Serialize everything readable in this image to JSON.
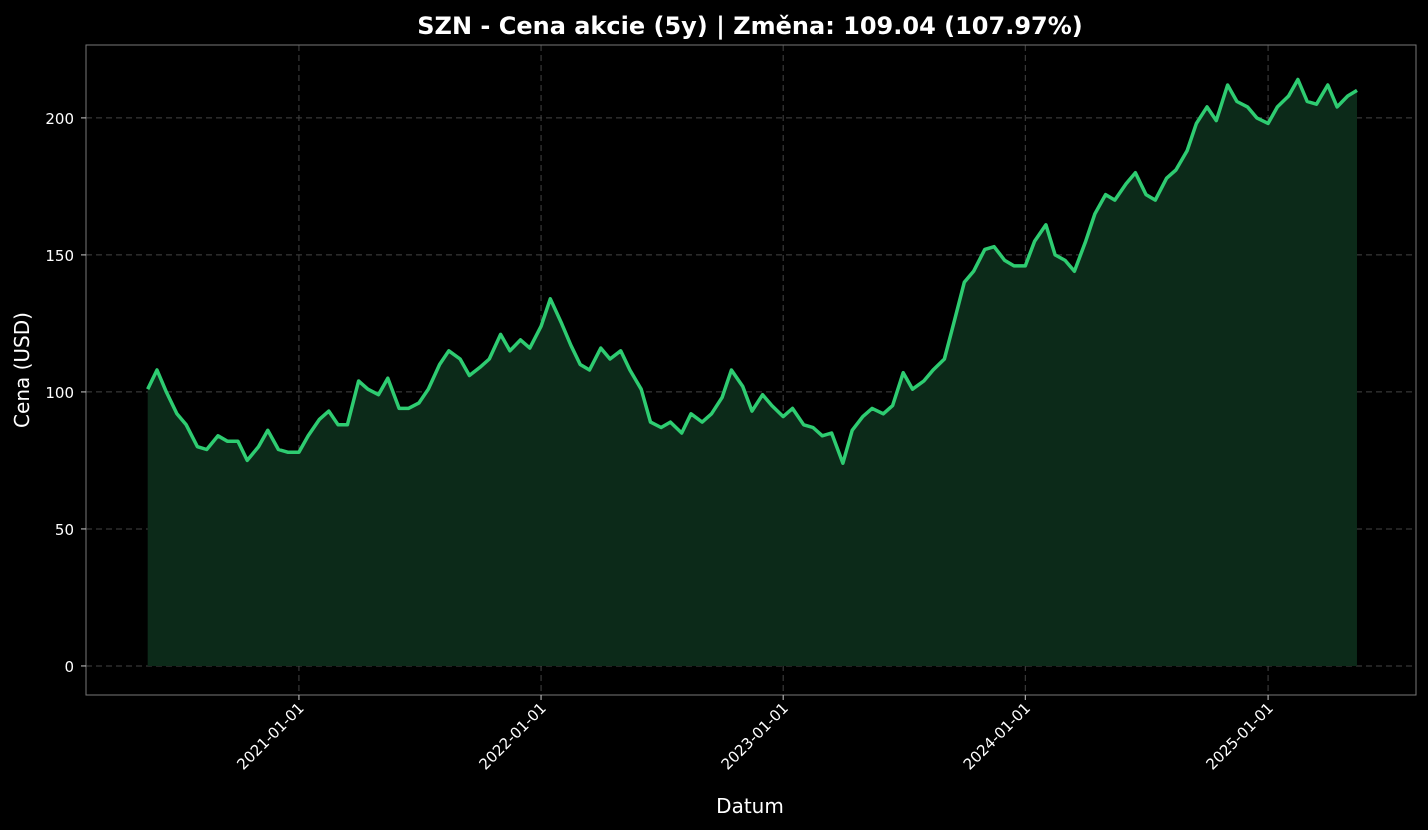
{
  "chart_data": {
    "type": "area-line",
    "title": "SZN - Cena akcie (5y) | Změna: 109.04 (107.97%)",
    "xlabel": "Datum",
    "ylabel": "Cena (USD)",
    "xlim": [
      "2020-02-15",
      "2025-08-12"
    ],
    "ylim": [
      -10.6,
      226.6
    ],
    "xticks": [
      "2021-01-01",
      "2022-01-01",
      "2023-01-01",
      "2024-01-01",
      "2025-01-01"
    ],
    "yticks": [
      0,
      50,
      100,
      150,
      200
    ],
    "grid": true,
    "x": [
      "2020-05-18",
      "2020-06-01",
      "2020-06-15",
      "2020-07-01",
      "2020-07-15",
      "2020-08-01",
      "2020-08-15",
      "2020-09-01",
      "2020-09-15",
      "2020-10-01",
      "2020-10-15",
      "2020-11-01",
      "2020-11-15",
      "2020-12-01",
      "2020-12-15",
      "2021-01-01",
      "2021-01-15",
      "2021-02-01",
      "2021-02-15",
      "2021-03-01",
      "2021-03-15",
      "2021-04-01",
      "2021-04-15",
      "2021-05-01",
      "2021-05-15",
      "2021-06-01",
      "2021-06-15",
      "2021-07-01",
      "2021-07-15",
      "2021-08-01",
      "2021-08-15",
      "2021-09-01",
      "2021-09-15",
      "2021-10-01",
      "2021-10-15",
      "2021-11-01",
      "2021-11-15",
      "2021-12-01",
      "2021-12-15",
      "2022-01-01",
      "2022-01-15",
      "2022-02-01",
      "2022-02-15",
      "2022-03-01",
      "2022-03-15",
      "2022-04-01",
      "2022-04-15",
      "2022-05-01",
      "2022-05-15",
      "2022-06-01",
      "2022-06-15",
      "2022-07-01",
      "2022-07-15",
      "2022-08-01",
      "2022-08-15",
      "2022-09-01",
      "2022-09-15",
      "2022-10-01",
      "2022-10-15",
      "2022-11-01",
      "2022-11-15",
      "2022-12-01",
      "2022-12-15",
      "2023-01-01",
      "2023-01-15",
      "2023-02-01",
      "2023-02-15",
      "2023-03-01",
      "2023-03-15",
      "2023-04-01",
      "2023-04-15",
      "2023-05-01",
      "2023-05-15",
      "2023-06-01",
      "2023-06-15",
      "2023-07-01",
      "2023-07-15",
      "2023-08-01",
      "2023-08-15",
      "2023-09-01",
      "2023-09-15",
      "2023-10-01",
      "2023-10-15",
      "2023-11-01",
      "2023-11-15",
      "2023-12-01",
      "2023-12-15",
      "2024-01-01",
      "2024-01-15",
      "2024-02-01",
      "2024-02-15",
      "2024-03-01",
      "2024-03-15",
      "2024-04-01",
      "2024-04-15",
      "2024-05-01",
      "2024-05-15",
      "2024-06-01",
      "2024-06-15",
      "2024-07-01",
      "2024-07-15",
      "2024-08-01",
      "2024-08-15",
      "2024-09-01",
      "2024-09-15",
      "2024-10-01",
      "2024-10-15",
      "2024-11-01",
      "2024-11-15",
      "2024-12-01",
      "2024-12-15",
      "2025-01-01",
      "2025-01-15",
      "2025-02-01",
      "2025-02-15",
      "2025-03-01",
      "2025-03-15",
      "2025-04-01",
      "2025-04-15",
      "2025-05-01",
      "2025-05-15"
    ],
    "series": [
      {
        "color": "#2ecc71",
        "fill": "#0c2a19",
        "values": [
          100.99,
          108,
          100,
          92,
          88,
          80,
          79,
          84,
          82,
          82,
          75,
          80,
          86,
          79,
          78,
          78,
          84,
          90,
          93,
          88,
          88,
          104,
          101,
          99,
          105,
          94,
          94,
          96,
          101,
          110,
          115,
          112,
          106,
          109,
          112,
          121,
          115,
          119,
          116,
          124,
          134,
          125,
          117,
          110,
          108,
          116,
          112,
          115,
          108,
          101,
          89,
          87,
          89,
          85,
          92,
          89,
          92,
          98,
          108,
          102,
          93,
          99,
          95,
          91,
          94,
          88,
          87,
          84,
          85,
          74,
          86,
          91,
          94,
          92,
          95,
          107,
          101,
          104,
          108,
          112,
          125,
          140,
          144,
          152,
          153,
          148,
          146,
          146,
          155,
          161,
          150,
          148,
          144,
          155,
          165,
          172,
          170,
          176,
          180,
          172,
          170,
          178,
          181,
          188,
          198,
          204,
          199,
          212,
          206,
          204,
          200,
          198,
          204,
          208,
          214,
          206,
          205,
          212,
          204,
          208,
          210.03
        ]
      }
    ]
  }
}
